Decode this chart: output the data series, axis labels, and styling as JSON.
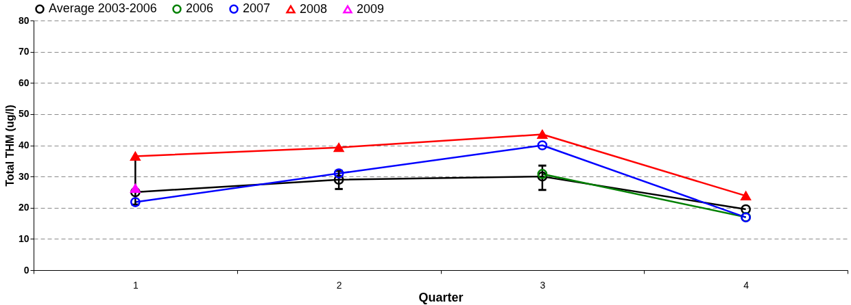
{
  "chart_data": {
    "type": "line",
    "xlabel": "Quarter",
    "ylabel": "Total THM (ug/l)",
    "categories": [
      "1",
      "2",
      "3",
      "4"
    ],
    "ylim": [
      0,
      80
    ],
    "yticks": [
      0,
      10,
      20,
      30,
      40,
      50,
      60,
      70,
      80
    ],
    "grid": "y",
    "legend": "top",
    "series": [
      {
        "name": "Average 2003-2006",
        "color": "#000000",
        "marker": "circle",
        "values": [
          25,
          29,
          30,
          19.5
        ],
        "errors": [
          [
            21,
            35.5
          ],
          [
            26,
            31.8
          ],
          [
            25.7,
            33.5
          ],
          null
        ]
      },
      {
        "name": "2006",
        "color": "#008000",
        "marker": "circle",
        "values": [
          null,
          null,
          30.8,
          17
        ]
      },
      {
        "name": "2007",
        "color": "#0000ff",
        "marker": "circle",
        "values": [
          21.8,
          31,
          40,
          16.9
        ]
      },
      {
        "name": "2008",
        "color": "#ff0000",
        "marker": "triangle",
        "values": [
          36.5,
          39.3,
          43.5,
          23.8
        ]
      },
      {
        "name": "2009",
        "color": "#ff00ff",
        "marker": "triangle",
        "values": [
          26.2,
          null,
          null,
          null
        ]
      }
    ]
  }
}
